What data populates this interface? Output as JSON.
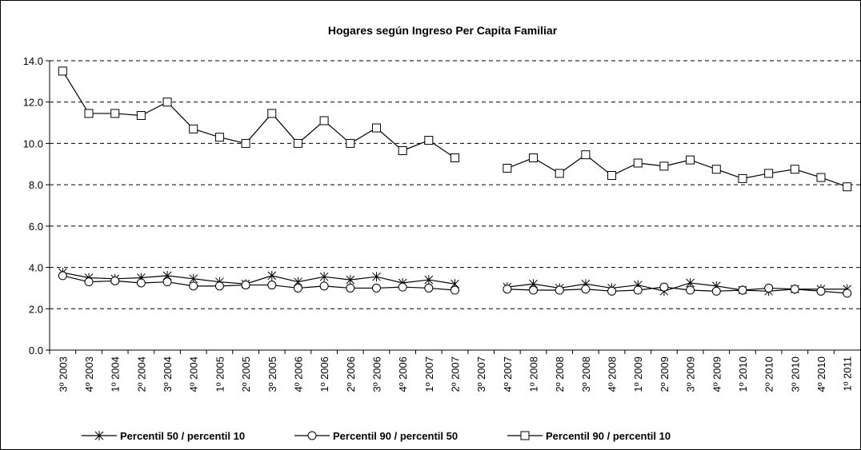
{
  "chart_data": {
    "type": "line",
    "title": "Hogares según Ingreso Per Capita Familiar",
    "categories": [
      "3º 2003",
      "4º 2003",
      "1º 2004",
      "2º 2004",
      "3º 2004",
      "4º 2004",
      "1º 2005",
      "2º 2005",
      "3º 2005",
      "4º 2006",
      "1º 2006",
      "2º 2006",
      "3º 2006",
      "4º 2006",
      "1º 2007",
      "2º 2007",
      "3º 2007",
      "4º 2007",
      "1º 2008",
      "2º 2008",
      "3º 2008",
      "4º 2008",
      "1º 2009",
      "2º 2009",
      "3º 2009",
      "4º 2009",
      "1º 2010",
      "2º 2010",
      "3º 2010",
      "4º 2010",
      "1º 2011"
    ],
    "series": [
      {
        "name": "Percentil 50 / percentil 10",
        "color": "#000000",
        "marker": "star",
        "values": [
          3.75,
          3.5,
          3.45,
          3.5,
          3.6,
          3.45,
          3.3,
          3.2,
          3.6,
          3.3,
          3.55,
          3.4,
          3.55,
          3.25,
          3.4,
          3.2,
          null,
          3.05,
          3.2,
          3.0,
          3.2,
          3.0,
          3.15,
          2.85,
          3.25,
          3.1,
          2.9,
          2.85,
          2.95,
          2.95,
          2.95
        ]
      },
      {
        "name": "Percentil 90 / percentil 50",
        "color": "#000000",
        "marker": "circle",
        "values": [
          3.6,
          3.3,
          3.35,
          3.25,
          3.3,
          3.1,
          3.1,
          3.15,
          3.15,
          3.0,
          3.1,
          3.0,
          3.0,
          3.05,
          3.0,
          2.9,
          null,
          2.95,
          2.9,
          2.9,
          2.95,
          2.85,
          2.9,
          3.05,
          2.9,
          2.85,
          2.9,
          3.0,
          2.95,
          2.85,
          2.75
        ]
      },
      {
        "name": "Percentil 90 / percentil 10",
        "color": "#000000",
        "marker": "square",
        "values": [
          13.5,
          11.45,
          11.45,
          11.35,
          12.0,
          10.7,
          10.3,
          10.0,
          11.45,
          10.0,
          11.1,
          10.0,
          10.75,
          9.65,
          10.15,
          9.3,
          null,
          8.8,
          9.3,
          8.55,
          9.45,
          8.45,
          9.05,
          8.9,
          9.2,
          8.75,
          8.3,
          8.55,
          8.75,
          8.35,
          7.9
        ]
      }
    ],
    "ylim": [
      0,
      14
    ],
    "yticks": [
      {
        "value": 0,
        "label": "0.0"
      },
      {
        "value": 2,
        "label": "2.0"
      },
      {
        "value": 4,
        "label": "4.0"
      },
      {
        "value": 6,
        "label": "6.0"
      },
      {
        "value": 8,
        "label": "8.0"
      },
      {
        "value": 10,
        "label": "10.0"
      },
      {
        "value": 12,
        "label": "12.0"
      },
      {
        "value": 14,
        "label": "14.0"
      }
    ],
    "grid": true,
    "legend": "bottom"
  }
}
